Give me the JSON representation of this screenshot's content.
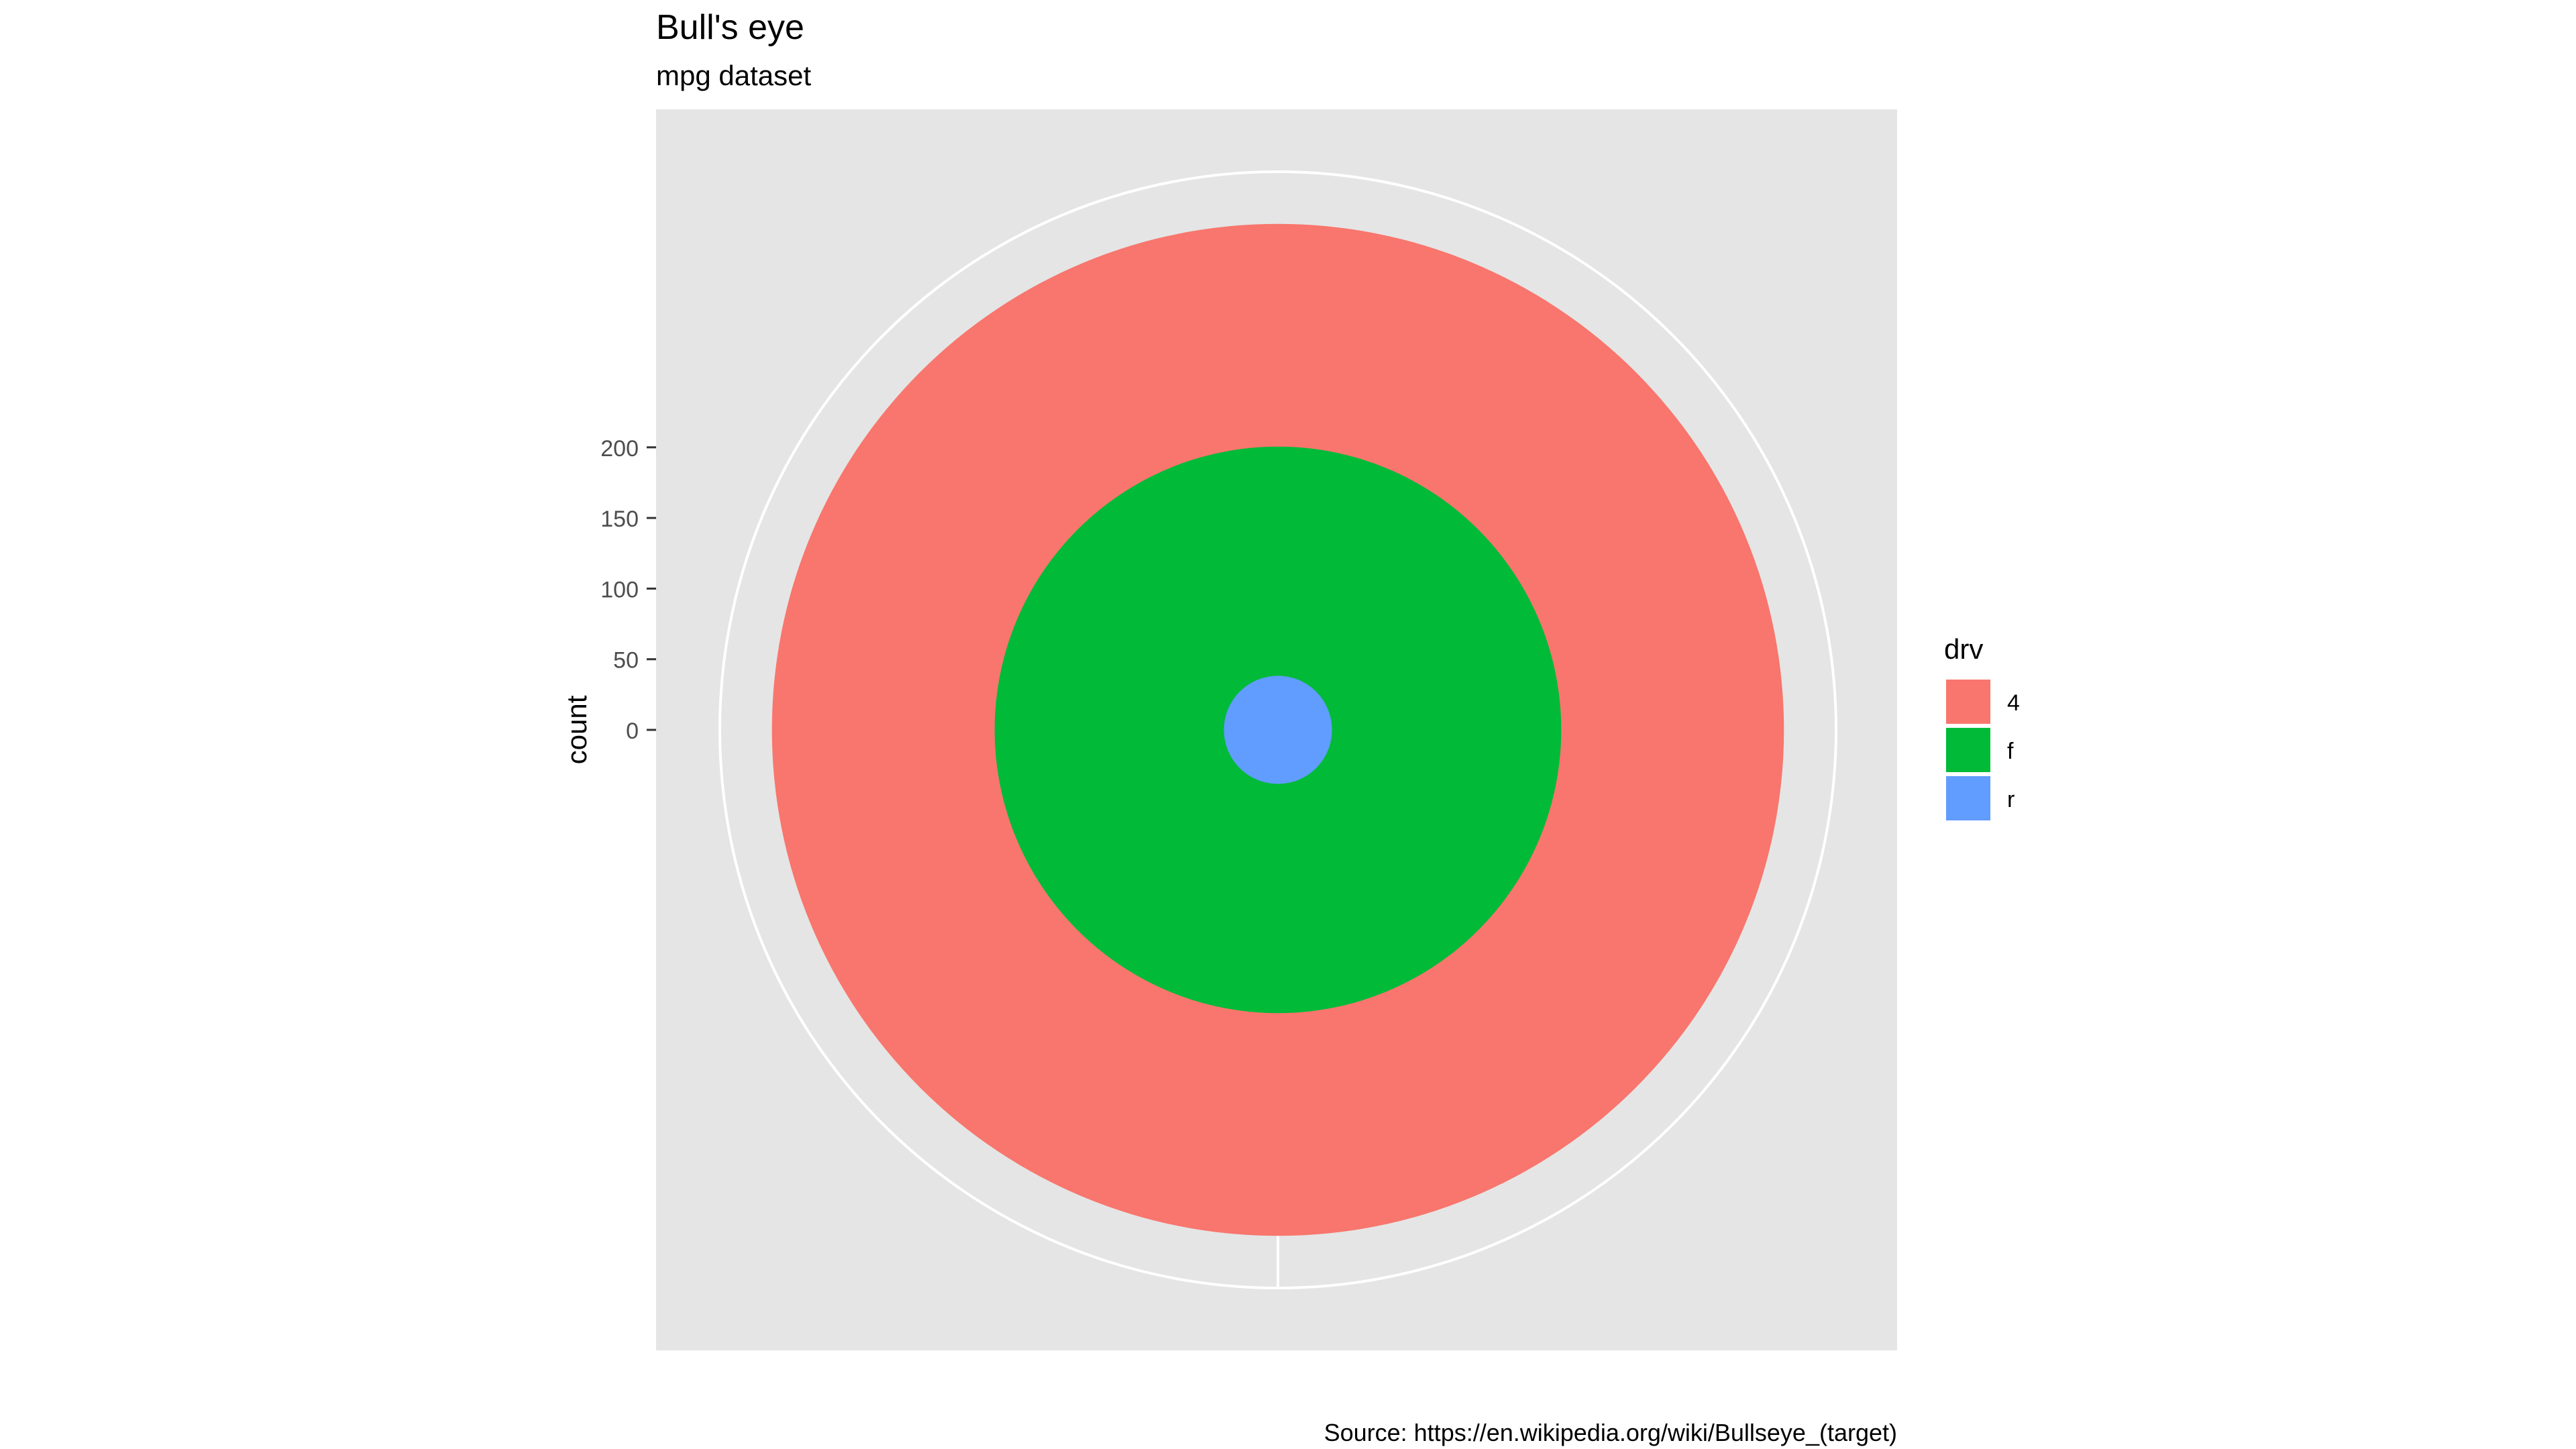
{
  "chart_data": {
    "type": "bar",
    "coord": "polar",
    "title": "Bull's eye",
    "subtitle": "mpg dataset",
    "caption": "Source: https://en.wikipedia.org/wiki/Bullseye_(target)",
    "ylabel": "count",
    "xlabel": "",
    "y_ticks": [
      0,
      50,
      100,
      150,
      200
    ],
    "ylim": [
      0,
      258.1
    ],
    "legend_title": "drv",
    "legend_position": "right",
    "series": [
      {
        "name": "r",
        "value": 25,
        "color": "#619CFF"
      },
      {
        "name": "f",
        "value": 106,
        "color": "#00BA38"
      },
      {
        "name": "4",
        "value": 103,
        "color": "#F8766D"
      }
    ],
    "legend": [
      {
        "name": "4",
        "color": "#F8766D"
      },
      {
        "name": "f",
        "color": "#00BA38"
      },
      {
        "name": "r",
        "color": "#619CFF"
      }
    ],
    "panel_background": "#E5E5E5",
    "grid": true
  }
}
